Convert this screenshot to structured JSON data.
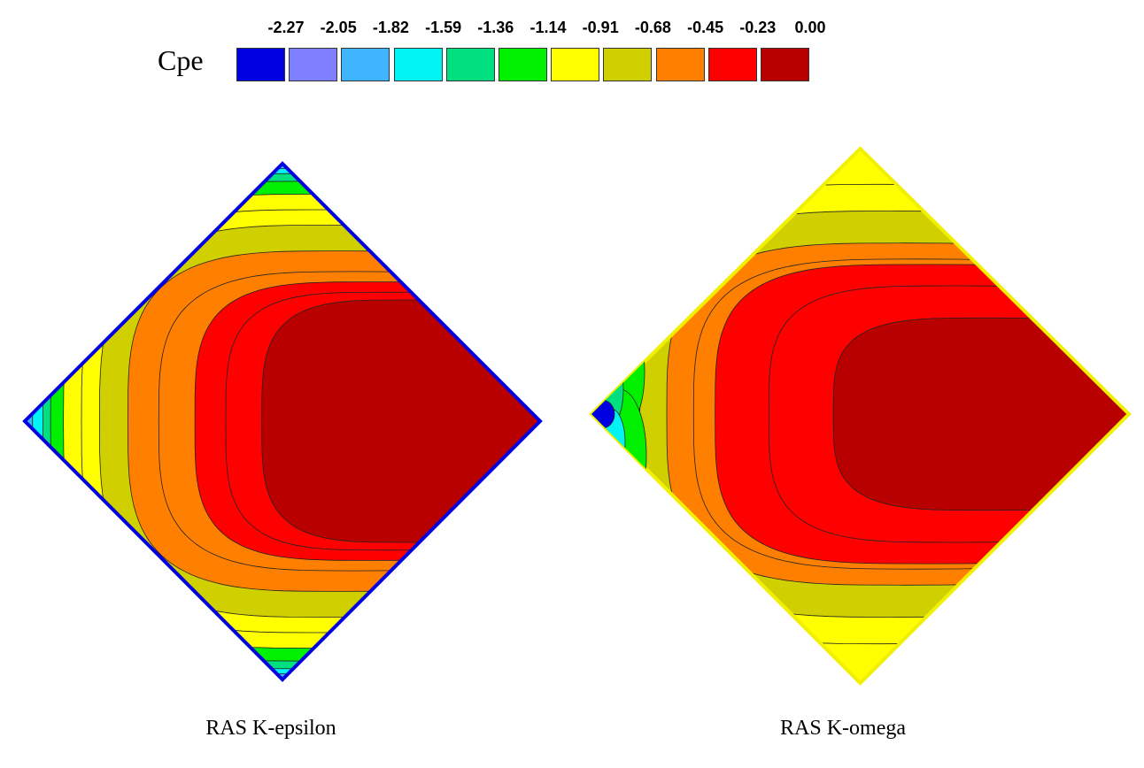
{
  "chart_data": {
    "type": "contour",
    "legend": {
      "title": "Cpe",
      "levels": [
        "-2.27",
        "-2.05",
        "-1.82",
        "-1.59",
        "-1.36",
        "-1.14",
        "-0.91",
        "-0.68",
        "-0.45",
        "-0.23",
        "0.00"
      ],
      "colors": [
        "#0000e0",
        "#7f7fff",
        "#3fb4ff",
        "#00f4f4",
        "#00e080",
        "#00f000",
        "#ffff00",
        "#d0d000",
        "#ff8000",
        "#ff0000",
        "#b80000"
      ],
      "placement": "top"
    },
    "panels": [
      {
        "title": "RAS K-epsilon",
        "center_level": "0.00",
        "min_level_at_edges": "-2.27"
      },
      {
        "title": "RAS K-omega",
        "center_level": "0.00",
        "min_level_at_edges": "-2.27"
      }
    ]
  }
}
